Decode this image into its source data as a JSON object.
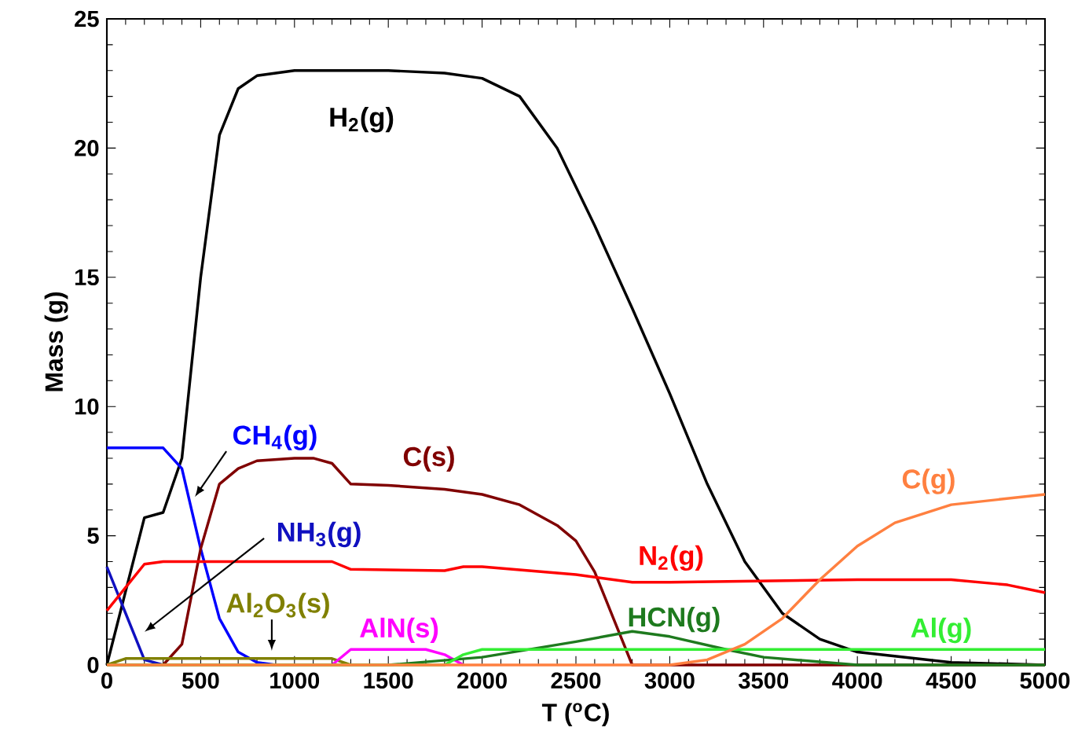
{
  "chart_data": {
    "type": "line",
    "xlabel": "T ($^{o}$C)",
    "ylabel": "Mass (g)",
    "xlim": [
      0,
      5000
    ],
    "ylim": [
      0,
      25
    ],
    "xticks": [
      0,
      500,
      1000,
      1500,
      2000,
      2500,
      3000,
      3500,
      4000,
      4500,
      5000
    ],
    "yticks": [
      0,
      5,
      10,
      15,
      20,
      25
    ],
    "grid": false,
    "series": [
      {
        "name": "H$_{2}$(g)",
        "color": "#000000",
        "x": [
          0,
          200,
          300,
          400,
          500,
          600,
          700,
          800,
          1000,
          1500,
          1800,
          2000,
          2200,
          2400,
          2600,
          2800,
          3000,
          3200,
          3400,
          3600,
          3800,
          4000,
          4500,
          5000
        ],
        "values": [
          0,
          5.7,
          5.9,
          8,
          15,
          20.5,
          22.3,
          22.8,
          23,
          23,
          22.9,
          22.7,
          22,
          20,
          17,
          13.8,
          10.5,
          7,
          4,
          2,
          1,
          0.5,
          0.1,
          0
        ]
      },
      {
        "name": "CH$_{4}$(g)",
        "color": "#0000ff",
        "x": [
          0,
          300,
          400,
          500,
          600,
          700,
          800,
          900
        ],
        "values": [
          8.4,
          8.4,
          7.6,
          4.5,
          1.8,
          0.5,
          0.1,
          0
        ]
      },
      {
        "name": "NH$_{3}$(g)",
        "color": "#1010c0",
        "x": [
          0,
          100,
          200,
          300
        ],
        "values": [
          3.8,
          2,
          0.2,
          0
        ]
      },
      {
        "name": "C(s)",
        "color": "#800000",
        "x": [
          0,
          300,
          400,
          500,
          600,
          700,
          800,
          1000,
          1100,
          1200,
          1300,
          1500,
          1800,
          2000,
          2200,
          2400,
          2500,
          2600,
          2700,
          2800,
          5000
        ],
        "values": [
          0,
          0,
          0.8,
          4.5,
          7,
          7.6,
          7.9,
          8,
          8,
          7.8,
          7,
          6.95,
          6.8,
          6.6,
          6.2,
          5.4,
          4.8,
          3.6,
          1.8,
          0,
          0
        ]
      },
      {
        "name": "N$_{2}$(g)",
        "color": "#ff0000",
        "x": [
          0,
          100,
          200,
          300,
          1200,
          1300,
          1800,
          1900,
          2000,
          2500,
          2800,
          3000,
          4000,
          4500,
          4800,
          5000
        ],
        "values": [
          2.1,
          3,
          3.9,
          4,
          4,
          3.7,
          3.65,
          3.8,
          3.8,
          3.5,
          3.2,
          3.2,
          3.3,
          3.3,
          3.1,
          2.8
        ]
      },
      {
        "name": "Al$_{2}$O$_{3}$(s)",
        "color": "#808000",
        "x": [
          0,
          100,
          1200,
          1300
        ],
        "values": [
          0,
          0.25,
          0.25,
          0
        ]
      },
      {
        "name": "AlN(s)",
        "color": "#ff00ff",
        "x": [
          1200,
          1300,
          1700,
          1800,
          1900
        ],
        "values": [
          0,
          0.6,
          0.6,
          0.4,
          0
        ]
      },
      {
        "name": "HCN(g)",
        "color": "#1e7a1e",
        "x": [
          0,
          1500,
          2000,
          2500,
          2800,
          3000,
          3300,
          3500,
          4000,
          5000
        ],
        "values": [
          0,
          0,
          0.3,
          0.9,
          1.3,
          1.1,
          0.6,
          0.3,
          0,
          0
        ]
      },
      {
        "name": "Al(g)",
        "color": "#33ee33",
        "x": [
          0,
          1800,
          1900,
          2000,
          5000
        ],
        "values": [
          0,
          0,
          0.4,
          0.6,
          0.6
        ]
      },
      {
        "name": "C(g)",
        "color": "#ff8040",
        "x": [
          0,
          3000,
          3200,
          3400,
          3600,
          3800,
          4000,
          4200,
          4500,
          5000
        ],
        "values": [
          0,
          0,
          0.2,
          0.8,
          1.8,
          3.3,
          4.6,
          5.5,
          6.2,
          6.6
        ]
      }
    ]
  }
}
